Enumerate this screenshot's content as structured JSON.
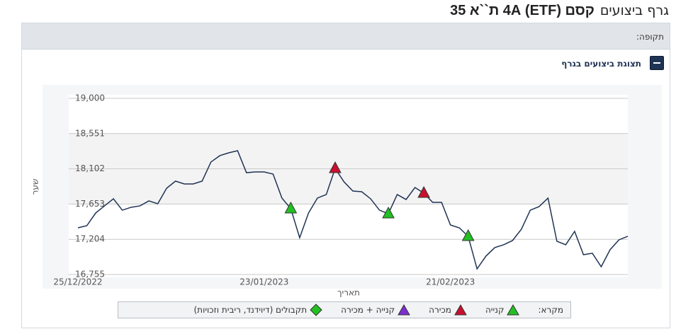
{
  "header": {
    "title": "גרף ביצועים",
    "subtitle": "קסם (ETF) 4A ת``א 35"
  },
  "filter_bar": {
    "label": "תקופה:"
  },
  "panel": {
    "title": "תצוגת ביצועים בגרף"
  },
  "chart_data": {
    "type": "line",
    "y_label": "שער",
    "x_label": "תאריך",
    "ylim": [
      16755,
      19000
    ],
    "yticks": [
      {
        "value": 16755,
        "label": "16,755"
      },
      {
        "value": 17204,
        "label": "17,204"
      },
      {
        "value": 17653,
        "label": "17,653"
      },
      {
        "value": 18102,
        "label": "18,102"
      },
      {
        "value": 18551,
        "label": "18,551"
      },
      {
        "value": 19000,
        "label": "19,000"
      }
    ],
    "grid": true,
    "categories": [
      "25/12/2022",
      null,
      null,
      null,
      null,
      null,
      null,
      null,
      null,
      null,
      null,
      null,
      null,
      null,
      null,
      null,
      null,
      null,
      null,
      null,
      null,
      "23/01/2023",
      null,
      null,
      null,
      null,
      null,
      null,
      null,
      null,
      null,
      null,
      null,
      null,
      null,
      null,
      null,
      null,
      null,
      null,
      null,
      null,
      "21/02/2023",
      null,
      null,
      null,
      null,
      null,
      null,
      null,
      null,
      null,
      null,
      null,
      null,
      null,
      null,
      null,
      null,
      null,
      null,
      null,
      null
    ],
    "series": [
      {
        "color": "#1f3354",
        "values": [
          17350,
          17377,
          17539,
          17630,
          17720,
          17575,
          17612,
          17630,
          17693,
          17657,
          17855,
          17945,
          17909,
          17909,
          17945,
          18189,
          18270,
          18306,
          18333,
          18053,
          18062,
          18062,
          18035,
          17729,
          17594,
          17224,
          17539,
          17729,
          17774,
          18107,
          17936,
          17819,
          17810,
          17720,
          17575,
          17530,
          17774,
          17711,
          17864,
          17792,
          17675,
          17675,
          17386,
          17350,
          17242,
          16827,
          16989,
          17098,
          17134,
          17188,
          17332,
          17575,
          17621,
          17729,
          17179,
          17134,
          17305,
          17007,
          17026,
          16854,
          17071,
          17197,
          17242
        ]
      },
      {
        "name": "קנייה",
        "color": "#22c022",
        "shape": "triangle-up",
        "values": [
          null,
          null,
          null,
          null,
          null,
          null,
          null,
          null,
          null,
          null,
          null,
          null,
          null,
          null,
          null,
          null,
          null,
          null,
          null,
          null,
          null,
          null,
          null,
          null,
          17594,
          null,
          null,
          null,
          null,
          null,
          null,
          null,
          null,
          null,
          null,
          17530,
          null,
          null,
          null,
          null,
          null,
          null,
          null,
          null,
          17242,
          null,
          null,
          null,
          null,
          null,
          null,
          null,
          null,
          null,
          null,
          null,
          null,
          null,
          null,
          null,
          null,
          null,
          null
        ]
      },
      {
        "name": "מכירה",
        "color": "#c8102e",
        "shape": "triangle-up",
        "values": [
          null,
          null,
          null,
          null,
          null,
          null,
          null,
          null,
          null,
          null,
          null,
          null,
          null,
          null,
          null,
          null,
          null,
          null,
          null,
          null,
          null,
          null,
          null,
          null,
          null,
          null,
          null,
          null,
          null,
          18107,
          null,
          null,
          null,
          null,
          null,
          null,
          null,
          null,
          null,
          17792,
          null,
          null,
          null,
          null,
          null,
          null,
          null,
          null,
          null,
          null,
          null,
          null,
          null,
          null,
          null,
          null,
          null,
          null,
          null,
          null,
          null,
          null,
          null
        ]
      },
      {
        "name": "קנייה + מכירה",
        "color": "#7b2fd0",
        "shape": "triangle-up",
        "values": [
          null,
          null,
          null,
          null,
          null,
          null,
          null,
          null,
          null,
          null,
          null,
          null,
          null,
          null,
          null,
          null,
          null,
          null,
          null,
          null,
          null,
          null,
          null,
          null,
          null,
          null,
          null,
          null,
          null,
          null,
          null,
          null,
          null,
          null,
          null,
          null,
          null,
          null,
          null,
          null,
          null,
          null,
          null,
          null,
          null,
          null,
          null,
          null,
          null,
          null,
          null,
          null,
          null,
          null,
          null,
          null,
          null,
          null,
          null,
          null,
          null,
          null,
          null
        ]
      },
      {
        "name": "תקבולים (דיוידנד, ריבית וזכויות)",
        "color": "#22c022",
        "shape": "diamond",
        "values": [
          null,
          null,
          null,
          null,
          null,
          null,
          null,
          null,
          null,
          null,
          null,
          null,
          null,
          null,
          null,
          null,
          null,
          null,
          null,
          null,
          null,
          null,
          null,
          null,
          null,
          null,
          null,
          null,
          null,
          null,
          null,
          null,
          null,
          null,
          null,
          null,
          null,
          null,
          null,
          null,
          null,
          null,
          null,
          null,
          null,
          null,
          null,
          null,
          null,
          null,
          null,
          null,
          null,
          null,
          null,
          null,
          null,
          null,
          null,
          null,
          null,
          null,
          null
        ]
      }
    ],
    "legend_title": "מקרא:"
  }
}
